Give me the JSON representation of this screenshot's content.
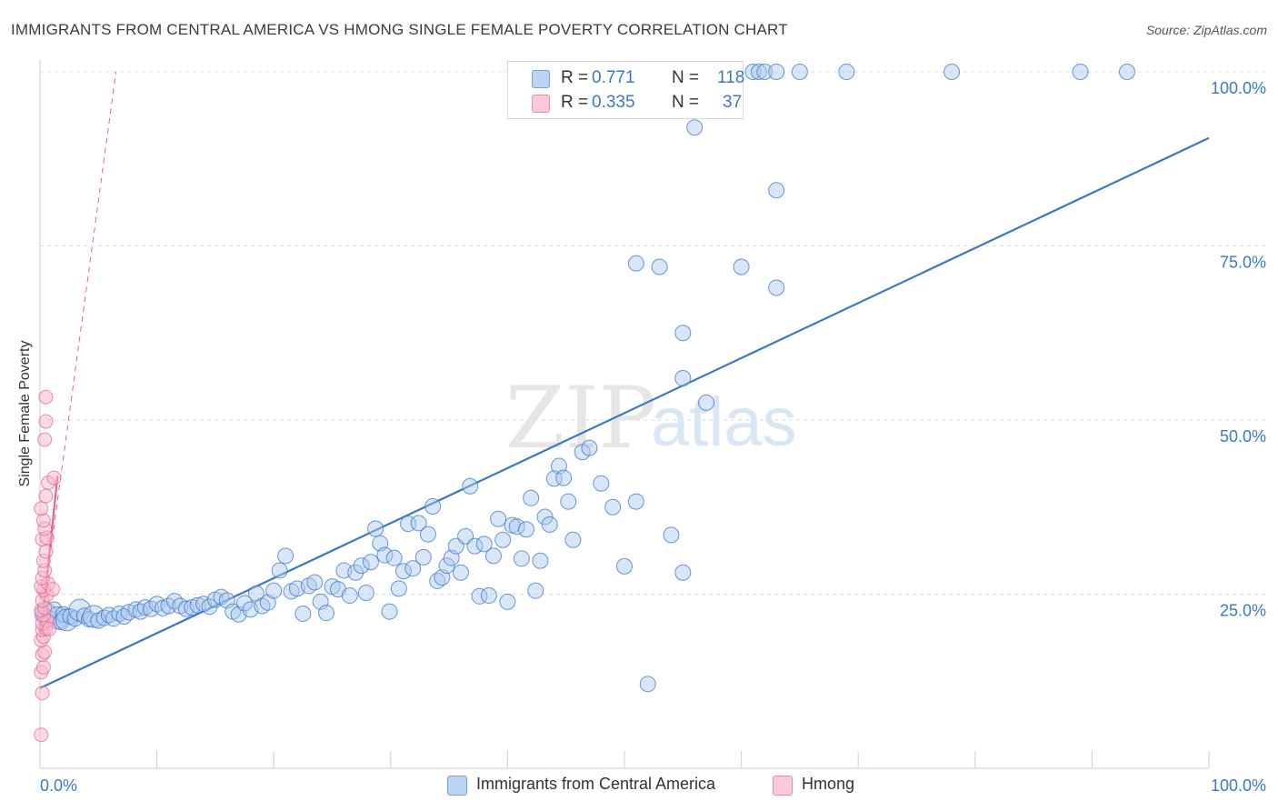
{
  "title": "IMMIGRANTS FROM CENTRAL AMERICA VS HMONG SINGLE FEMALE POVERTY CORRELATION CHART",
  "source": "Source: ZipAtlas.com",
  "watermark": {
    "zip": "ZIP",
    "atlas": "atlas"
  },
  "stats": [
    {
      "r_label": "R =",
      "r_value": "0.771",
      "n_label": "N =",
      "n_value": "118",
      "color": "#6fa0e0"
    },
    {
      "r_label": "R =",
      "r_value": "0.335",
      "n_label": "N =",
      "n_value": "37",
      "color": "#f08aaa"
    }
  ],
  "legend": [
    {
      "label": "Immigrants from Central America",
      "color": "#6fa0e0"
    },
    {
      "label": "Hmong",
      "color": "#f08aaa"
    }
  ],
  "chart_data": {
    "type": "scatter",
    "title": "IMMIGRANTS FROM CENTRAL AMERICA VS HMONG SINGLE FEMALE POVERTY CORRELATION CHART",
    "xlabel": "",
    "ylabel": "Single Female Poverty",
    "xlim": [
      0,
      100
    ],
    "ylim": [
      0,
      100
    ],
    "x_tick_labels": [
      "0.0%",
      "100.0%"
    ],
    "y_tick_labels": [
      "25.0%",
      "50.0%",
      "75.0%",
      "100.0%"
    ],
    "y_ticks": [
      25,
      50,
      75,
      100
    ],
    "grid": true,
    "colors": {
      "blue": "#3a78c8",
      "blue_fill": "#aac8f0",
      "pink": "#e8608c",
      "pink_fill": "#f6b6ca"
    },
    "series": [
      {
        "name": "Immigrants from Central America",
        "points": [
          [
            0.5,
            22.2
          ],
          [
            0.8,
            21.5
          ],
          [
            1.2,
            22.8
          ],
          [
            1.5,
            21.6
          ],
          [
            1.8,
            21.0
          ],
          [
            2.0,
            22.1
          ],
          [
            2.3,
            21.3
          ],
          [
            2.6,
            21.8
          ],
          [
            3.0,
            21.5
          ],
          [
            3.4,
            22.7
          ],
          [
            3.8,
            21.9
          ],
          [
            4.2,
            21.4
          ],
          [
            4.6,
            21.8
          ],
          [
            5.0,
            21.2
          ],
          [
            5.5,
            21.6
          ],
          [
            5.9,
            22.0
          ],
          [
            6.3,
            21.5
          ],
          [
            6.8,
            22.2
          ],
          [
            7.2,
            21.8
          ],
          [
            7.6,
            22.4
          ],
          [
            8.2,
            22.8
          ],
          [
            8.6,
            22.5
          ],
          [
            9.0,
            23.1
          ],
          [
            9.5,
            22.9
          ],
          [
            10.0,
            23.6
          ],
          [
            10.5,
            23.0
          ],
          [
            11.0,
            23.3
          ],
          [
            11.5,
            24.0
          ],
          [
            12.0,
            23.3
          ],
          [
            12.5,
            22.9
          ],
          [
            13.0,
            23.1
          ],
          [
            13.5,
            23.4
          ],
          [
            14.0,
            23.6
          ],
          [
            14.5,
            23.2
          ],
          [
            15.0,
            24.2
          ],
          [
            15.5,
            24.6
          ],
          [
            16.0,
            24.1
          ],
          [
            16.5,
            22.5
          ],
          [
            17.0,
            22.1
          ],
          [
            17.5,
            23.7
          ],
          [
            18.0,
            22.8
          ],
          [
            18.5,
            25.1
          ],
          [
            19.0,
            23.3
          ],
          [
            19.5,
            23.8
          ],
          [
            20.0,
            25.5
          ],
          [
            20.5,
            28.4
          ],
          [
            21.0,
            30.5
          ],
          [
            21.5,
            25.4
          ],
          [
            22.0,
            25.8
          ],
          [
            22.5,
            22.2
          ],
          [
            23.0,
            26.2
          ],
          [
            23.5,
            26.7
          ],
          [
            24.0,
            23.9
          ],
          [
            24.5,
            22.3
          ],
          [
            25.0,
            26.1
          ],
          [
            25.5,
            25.7
          ],
          [
            26.0,
            28.4
          ],
          [
            26.5,
            24.8
          ],
          [
            27.0,
            28.1
          ],
          [
            27.5,
            29.1
          ],
          [
            27.9,
            25.2
          ],
          [
            28.3,
            29.6
          ],
          [
            28.7,
            34.4
          ],
          [
            29.1,
            32.3
          ],
          [
            29.5,
            30.6
          ],
          [
            29.9,
            22.5
          ],
          [
            30.3,
            30.2
          ],
          [
            30.7,
            25.8
          ],
          [
            31.1,
            28.3
          ],
          [
            31.5,
            35.1
          ],
          [
            31.9,
            28.7
          ],
          [
            32.4,
            35.2
          ],
          [
            32.8,
            30.3
          ],
          [
            33.2,
            33.6
          ],
          [
            33.6,
            37.6
          ],
          [
            34.0,
            26.9
          ],
          [
            34.4,
            27.4
          ],
          [
            34.8,
            29.1
          ],
          [
            35.2,
            30.2
          ],
          [
            35.6,
            31.9
          ],
          [
            36.0,
            28.1
          ],
          [
            36.4,
            33.3
          ],
          [
            36.8,
            40.5
          ],
          [
            37.2,
            31.9
          ],
          [
            37.6,
            24.7
          ],
          [
            38.0,
            32.2
          ],
          [
            38.4,
            24.8
          ],
          [
            38.8,
            30.5
          ],
          [
            39.2,
            35.8
          ],
          [
            39.6,
            32.8
          ],
          [
            40.0,
            23.9
          ],
          [
            40.4,
            34.9
          ],
          [
            40.8,
            34.7
          ],
          [
            41.2,
            30.1
          ],
          [
            41.6,
            34.3
          ],
          [
            42.0,
            38.8
          ],
          [
            42.4,
            25.5
          ],
          [
            42.8,
            29.8
          ],
          [
            43.2,
            36.1
          ],
          [
            43.6,
            35.0
          ],
          [
            44.0,
            41.6
          ],
          [
            44.4,
            43.4
          ],
          [
            44.8,
            41.7
          ],
          [
            45.2,
            38.3
          ],
          [
            45.6,
            32.8
          ],
          [
            46.4,
            45.4
          ],
          [
            47.0,
            46.0
          ],
          [
            48.0,
            40.9
          ],
          [
            49.0,
            37.5
          ],
          [
            50.0,
            29.0
          ],
          [
            51.0,
            38.3
          ],
          [
            52.0,
            12.1
          ],
          [
            54.0,
            33.5
          ],
          [
            55.0,
            28.1
          ]
        ]
      },
      {
        "name": "Hmong",
        "points": [
          [
            0.1,
            4.8
          ],
          [
            0.2,
            10.8
          ],
          [
            0.1,
            13.8
          ],
          [
            0.3,
            14.5
          ],
          [
            0.2,
            16.3
          ],
          [
            0.4,
            16.7
          ],
          [
            0.1,
            18.4
          ],
          [
            0.3,
            18.9
          ],
          [
            0.2,
            19.9
          ],
          [
            0.5,
            20.1
          ],
          [
            0.2,
            20.8
          ],
          [
            0.6,
            21.2
          ],
          [
            0.3,
            22.0
          ],
          [
            0.1,
            22.7
          ],
          [
            0.4,
            23.0
          ],
          [
            0.2,
            24.1
          ],
          [
            0.6,
            24.9
          ],
          [
            0.3,
            25.6
          ],
          [
            0.1,
            26.1
          ],
          [
            0.7,
            26.5
          ],
          [
            0.2,
            27.3
          ],
          [
            0.4,
            28.4
          ],
          [
            0.3,
            29.8
          ],
          [
            0.5,
            31.1
          ],
          [
            0.2,
            32.9
          ],
          [
            0.6,
            33.1
          ],
          [
            0.4,
            34.4
          ],
          [
            0.3,
            35.6
          ],
          [
            0.1,
            37.3
          ],
          [
            0.5,
            39.1
          ],
          [
            0.7,
            41.0
          ],
          [
            1.2,
            41.7
          ],
          [
            0.4,
            47.2
          ],
          [
            0.5,
            49.8
          ],
          [
            0.5,
            53.3
          ],
          [
            1.1,
            25.7
          ],
          [
            0.8,
            20.0
          ]
        ]
      }
    ],
    "top_blue_points_note_values": [
      [
        61.0,
        100.0
      ],
      [
        61.5,
        100.0
      ],
      [
        62.0,
        100.0
      ],
      [
        63.0,
        100.0
      ],
      [
        65.0,
        100.0
      ],
      [
        69.0,
        100.0
      ],
      [
        78.0,
        100.0
      ],
      [
        89.0,
        100.0
      ],
      [
        93.0,
        100.0
      ],
      [
        55.0,
        56.0
      ],
      [
        57.0,
        52.5
      ],
      [
        56.0,
        92.0
      ],
      [
        63.0,
        83.0
      ],
      [
        60.0,
        72.0
      ],
      [
        51.0,
        72.5
      ],
      [
        53.0,
        72.0
      ],
      [
        55.0,
        62.5
      ],
      [
        63.0,
        69.0
      ]
    ],
    "trend_lines": [
      {
        "series": "Immigrants from Central America",
        "x": [
          0,
          100
        ],
        "y": [
          11.5,
          90.5
        ],
        "style": "solid"
      },
      {
        "series": "Hmong",
        "x": [
          0.1,
          1.5
        ],
        "y": [
          19.5,
          42.0
        ],
        "style": "solid"
      },
      {
        "series": "Hmong",
        "x": [
          0.0,
          6.5
        ],
        "y": [
          20.0,
          100.0
        ],
        "style": "dashed"
      }
    ]
  }
}
